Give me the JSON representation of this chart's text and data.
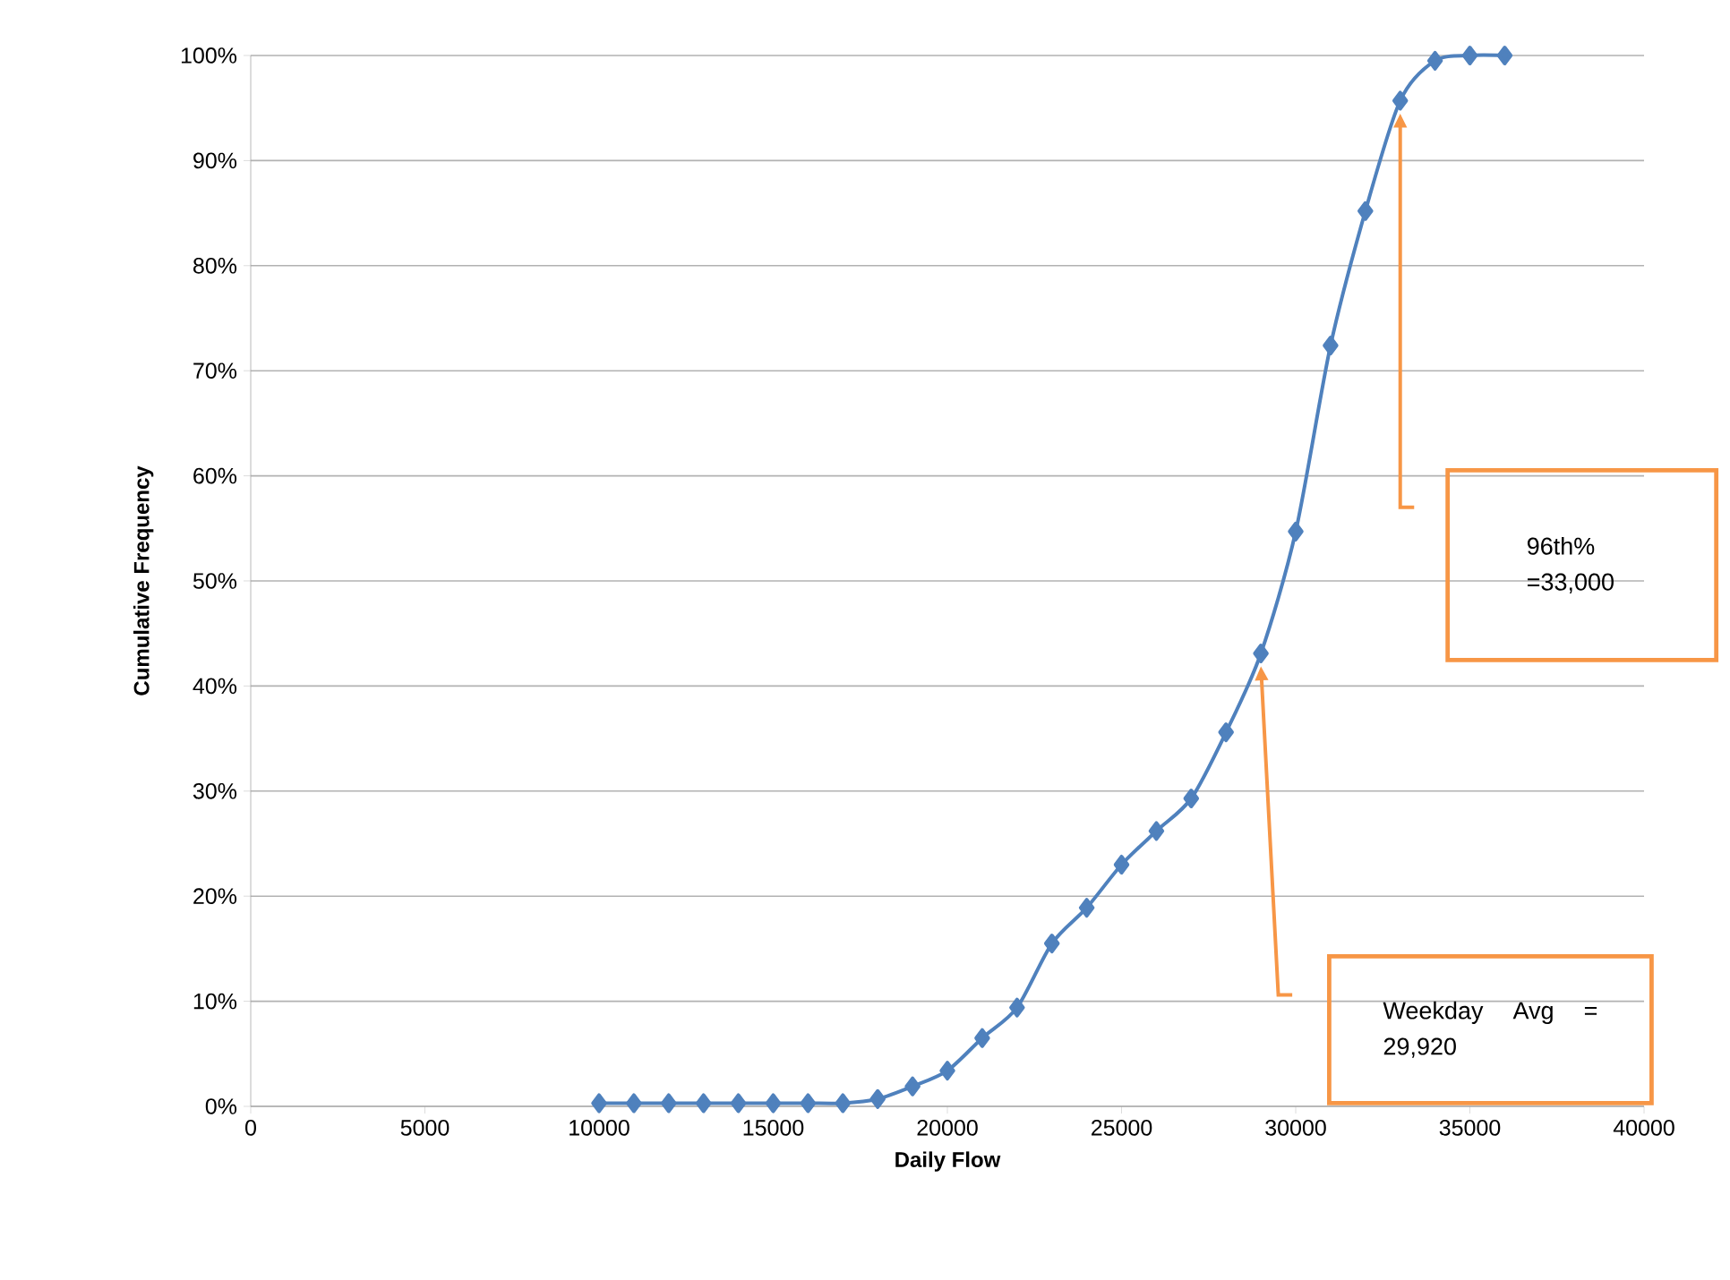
{
  "chart_data": {
    "type": "line",
    "xlabel": "Daily Flow",
    "ylabel": "Cumulative Frequency",
    "x": [
      10000,
      11000,
      12000,
      13000,
      14000,
      15000,
      16000,
      17000,
      18000,
      19000,
      20000,
      21000,
      22000,
      23000,
      24000,
      25000,
      26000,
      27000,
      28000,
      29000,
      30000,
      31000,
      32000,
      33000,
      34000,
      35000,
      36000
    ],
    "series": [
      {
        "color": "#4f81bd",
        "values": [
          0.3,
          0.3,
          0.3,
          0.3,
          0.3,
          0.3,
          0.3,
          0.3,
          0.7,
          1.9,
          3.4,
          6.5,
          9.4,
          15.5,
          18.9,
          23.0,
          26.2,
          29.3,
          35.6,
          43.1,
          54.7,
          72.4,
          85.2,
          95.7,
          99.5,
          100,
          100
        ]
      }
    ],
    "xlim": [
      0,
      40000
    ],
    "xticks": [
      0,
      5000,
      10000,
      15000,
      20000,
      25000,
      30000,
      35000,
      40000
    ],
    "ylim": [
      0,
      100
    ],
    "yticks": [
      {
        "value": 0,
        "label": "0%"
      },
      {
        "value": 10,
        "label": "10%"
      },
      {
        "value": 20,
        "label": "20%"
      },
      {
        "value": 30,
        "label": "30%"
      },
      {
        "value": 40,
        "label": "40%"
      },
      {
        "value": 50,
        "label": "50%"
      },
      {
        "value": 60,
        "label": "60%"
      },
      {
        "value": 70,
        "label": "70%"
      },
      {
        "value": 80,
        "label": "80%"
      },
      {
        "value": 90,
        "label": "90%"
      },
      {
        "value": 100,
        "label": "100%"
      }
    ],
    "grid": "y",
    "marker": "diamond",
    "line_style": "solid",
    "annotations": [
      "96th% =33,000",
      "Weekday Avg = 29,920"
    ]
  }
}
